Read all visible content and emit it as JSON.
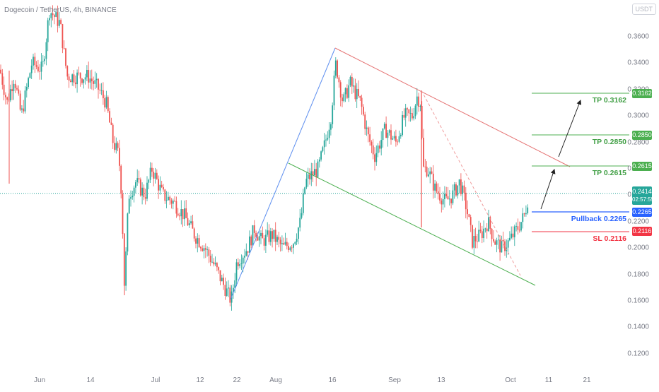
{
  "header": {
    "symbol_title": "Dogecoin / TetherUS, 4h, BINANCE",
    "currency_badge": "USDT"
  },
  "colors": {
    "up": "#26a69a",
    "down": "#ef5350",
    "tp_green": "#4caf50",
    "pullback_blue": "#2962ff",
    "sl_red": "#f23645",
    "price_tag": "#26a69a"
  },
  "current_price": {
    "value": "0.2414",
    "countdown": "02:57:55"
  },
  "price_axis": [
    "0.3600",
    "0.3400",
    "0.3200",
    "0.3000",
    "0.2800",
    "0.2600",
    "0.2400",
    "0.2200",
    "0.2000",
    "0.1800",
    "0.1600",
    "0.1400",
    "0.1200"
  ],
  "time_axis": [
    "Jun",
    "14",
    "Jul",
    "12",
    "22",
    "Aug",
    "16",
    "Sep",
    "13",
    "Oct",
    "11",
    "21"
  ],
  "levels": {
    "tp3": {
      "label": "TP 0.3162",
      "badge": "0.3162",
      "price": 0.3162
    },
    "tp2": {
      "label": "TP 0.2850",
      "badge": "0.2850",
      "price": 0.285
    },
    "tp1": {
      "label": "TP 0.2615",
      "badge": "0.2615",
      "price": 0.2615
    },
    "pullback": {
      "label": "Pullback 0.2265",
      "badge": "0.2265",
      "price": 0.2265
    },
    "sl": {
      "label": "SL 0.2116",
      "badge": "0.2116",
      "price": 0.2116
    }
  },
  "chart_data": {
    "type": "candlestick",
    "title": "Dogecoin / TetherUS, 4h, BINANCE",
    "ylim": [
      0.11,
      0.38
    ],
    "y_ticks": [
      0.12,
      0.14,
      0.16,
      0.18,
      0.2,
      0.22,
      0.24,
      0.26,
      0.28,
      0.3,
      0.32,
      0.34,
      0.36
    ],
    "x_ticks": [
      "Jun",
      "14",
      "Jul",
      "12",
      "22",
      "Aug",
      "16",
      "Sep",
      "13",
      "Oct",
      "11",
      "21"
    ],
    "price_path": [
      {
        "t": 0,
        "p": 0.335
      },
      {
        "t": 10,
        "p": 0.31
      },
      {
        "t": 20,
        "p": 0.33
      },
      {
        "t": 30,
        "p": 0.3
      },
      {
        "t": 45,
        "p": 0.34
      },
      {
        "t": 60,
        "p": 0.335
      },
      {
        "t": 70,
        "p": 0.38
      },
      {
        "t": 85,
        "p": 0.37
      },
      {
        "t": 95,
        "p": 0.33
      },
      {
        "t": 110,
        "p": 0.33
      },
      {
        "t": 125,
        "p": 0.33
      },
      {
        "t": 140,
        "p": 0.32
      },
      {
        "t": 150,
        "p": 0.31
      },
      {
        "t": 160,
        "p": 0.28
      },
      {
        "t": 168,
        "p": 0.27
      },
      {
        "t": 172,
        "p": 0.24
      },
      {
        "t": 176,
        "p": 0.17
      },
      {
        "t": 182,
        "p": 0.24
      },
      {
        "t": 192,
        "p": 0.25
      },
      {
        "t": 205,
        "p": 0.24
      },
      {
        "t": 215,
        "p": 0.26
      },
      {
        "t": 230,
        "p": 0.24
      },
      {
        "t": 245,
        "p": 0.235
      },
      {
        "t": 260,
        "p": 0.225
      },
      {
        "t": 275,
        "p": 0.21
      },
      {
        "t": 290,
        "p": 0.2
      },
      {
        "t": 305,
        "p": 0.185
      },
      {
        "t": 318,
        "p": 0.17
      },
      {
        "t": 327,
        "p": 0.16
      },
      {
        "t": 335,
        "p": 0.19
      },
      {
        "t": 350,
        "p": 0.2
      },
      {
        "t": 360,
        "p": 0.215
      },
      {
        "t": 370,
        "p": 0.205
      },
      {
        "t": 385,
        "p": 0.21
      },
      {
        "t": 400,
        "p": 0.2
      },
      {
        "t": 415,
        "p": 0.205
      },
      {
        "t": 425,
        "p": 0.22
      },
      {
        "t": 432,
        "p": 0.25
      },
      {
        "t": 440,
        "p": 0.255
      },
      {
        "t": 450,
        "p": 0.26
      },
      {
        "t": 460,
        "p": 0.28
      },
      {
        "t": 468,
        "p": 0.3
      },
      {
        "t": 475,
        "p": 0.34
      },
      {
        "t": 485,
        "p": 0.31
      },
      {
        "t": 495,
        "p": 0.325
      },
      {
        "t": 510,
        "p": 0.31
      },
      {
        "t": 520,
        "p": 0.285
      },
      {
        "t": 530,
        "p": 0.27
      },
      {
        "t": 545,
        "p": 0.29
      },
      {
        "t": 560,
        "p": 0.28
      },
      {
        "t": 572,
        "p": 0.3
      },
      {
        "t": 583,
        "p": 0.3
      },
      {
        "t": 590,
        "p": 0.315
      },
      {
        "t": 595,
        "p": 0.31
      },
      {
        "t": 598,
        "p": 0.26
      },
      {
        "t": 605,
        "p": 0.26
      },
      {
        "t": 615,
        "p": 0.245
      },
      {
        "t": 630,
        "p": 0.235
      },
      {
        "t": 640,
        "p": 0.24
      },
      {
        "t": 650,
        "p": 0.25
      },
      {
        "t": 660,
        "p": 0.23
      },
      {
        "t": 668,
        "p": 0.205
      },
      {
        "t": 680,
        "p": 0.21
      },
      {
        "t": 690,
        "p": 0.22
      },
      {
        "t": 700,
        "p": 0.205
      },
      {
        "t": 710,
        "p": 0.2
      },
      {
        "t": 720,
        "p": 0.205
      },
      {
        "t": 732,
        "p": 0.215
      },
      {
        "t": 742,
        "p": 0.225
      },
      {
        "t": 748,
        "p": 0.2414
      }
    ],
    "last_price": 0.2414,
    "annotations": [
      "TP 0.3162",
      "TP 0.2850",
      "TP 0.2615",
      "Pullback 0.2265",
      "SL 0.2116"
    ]
  }
}
